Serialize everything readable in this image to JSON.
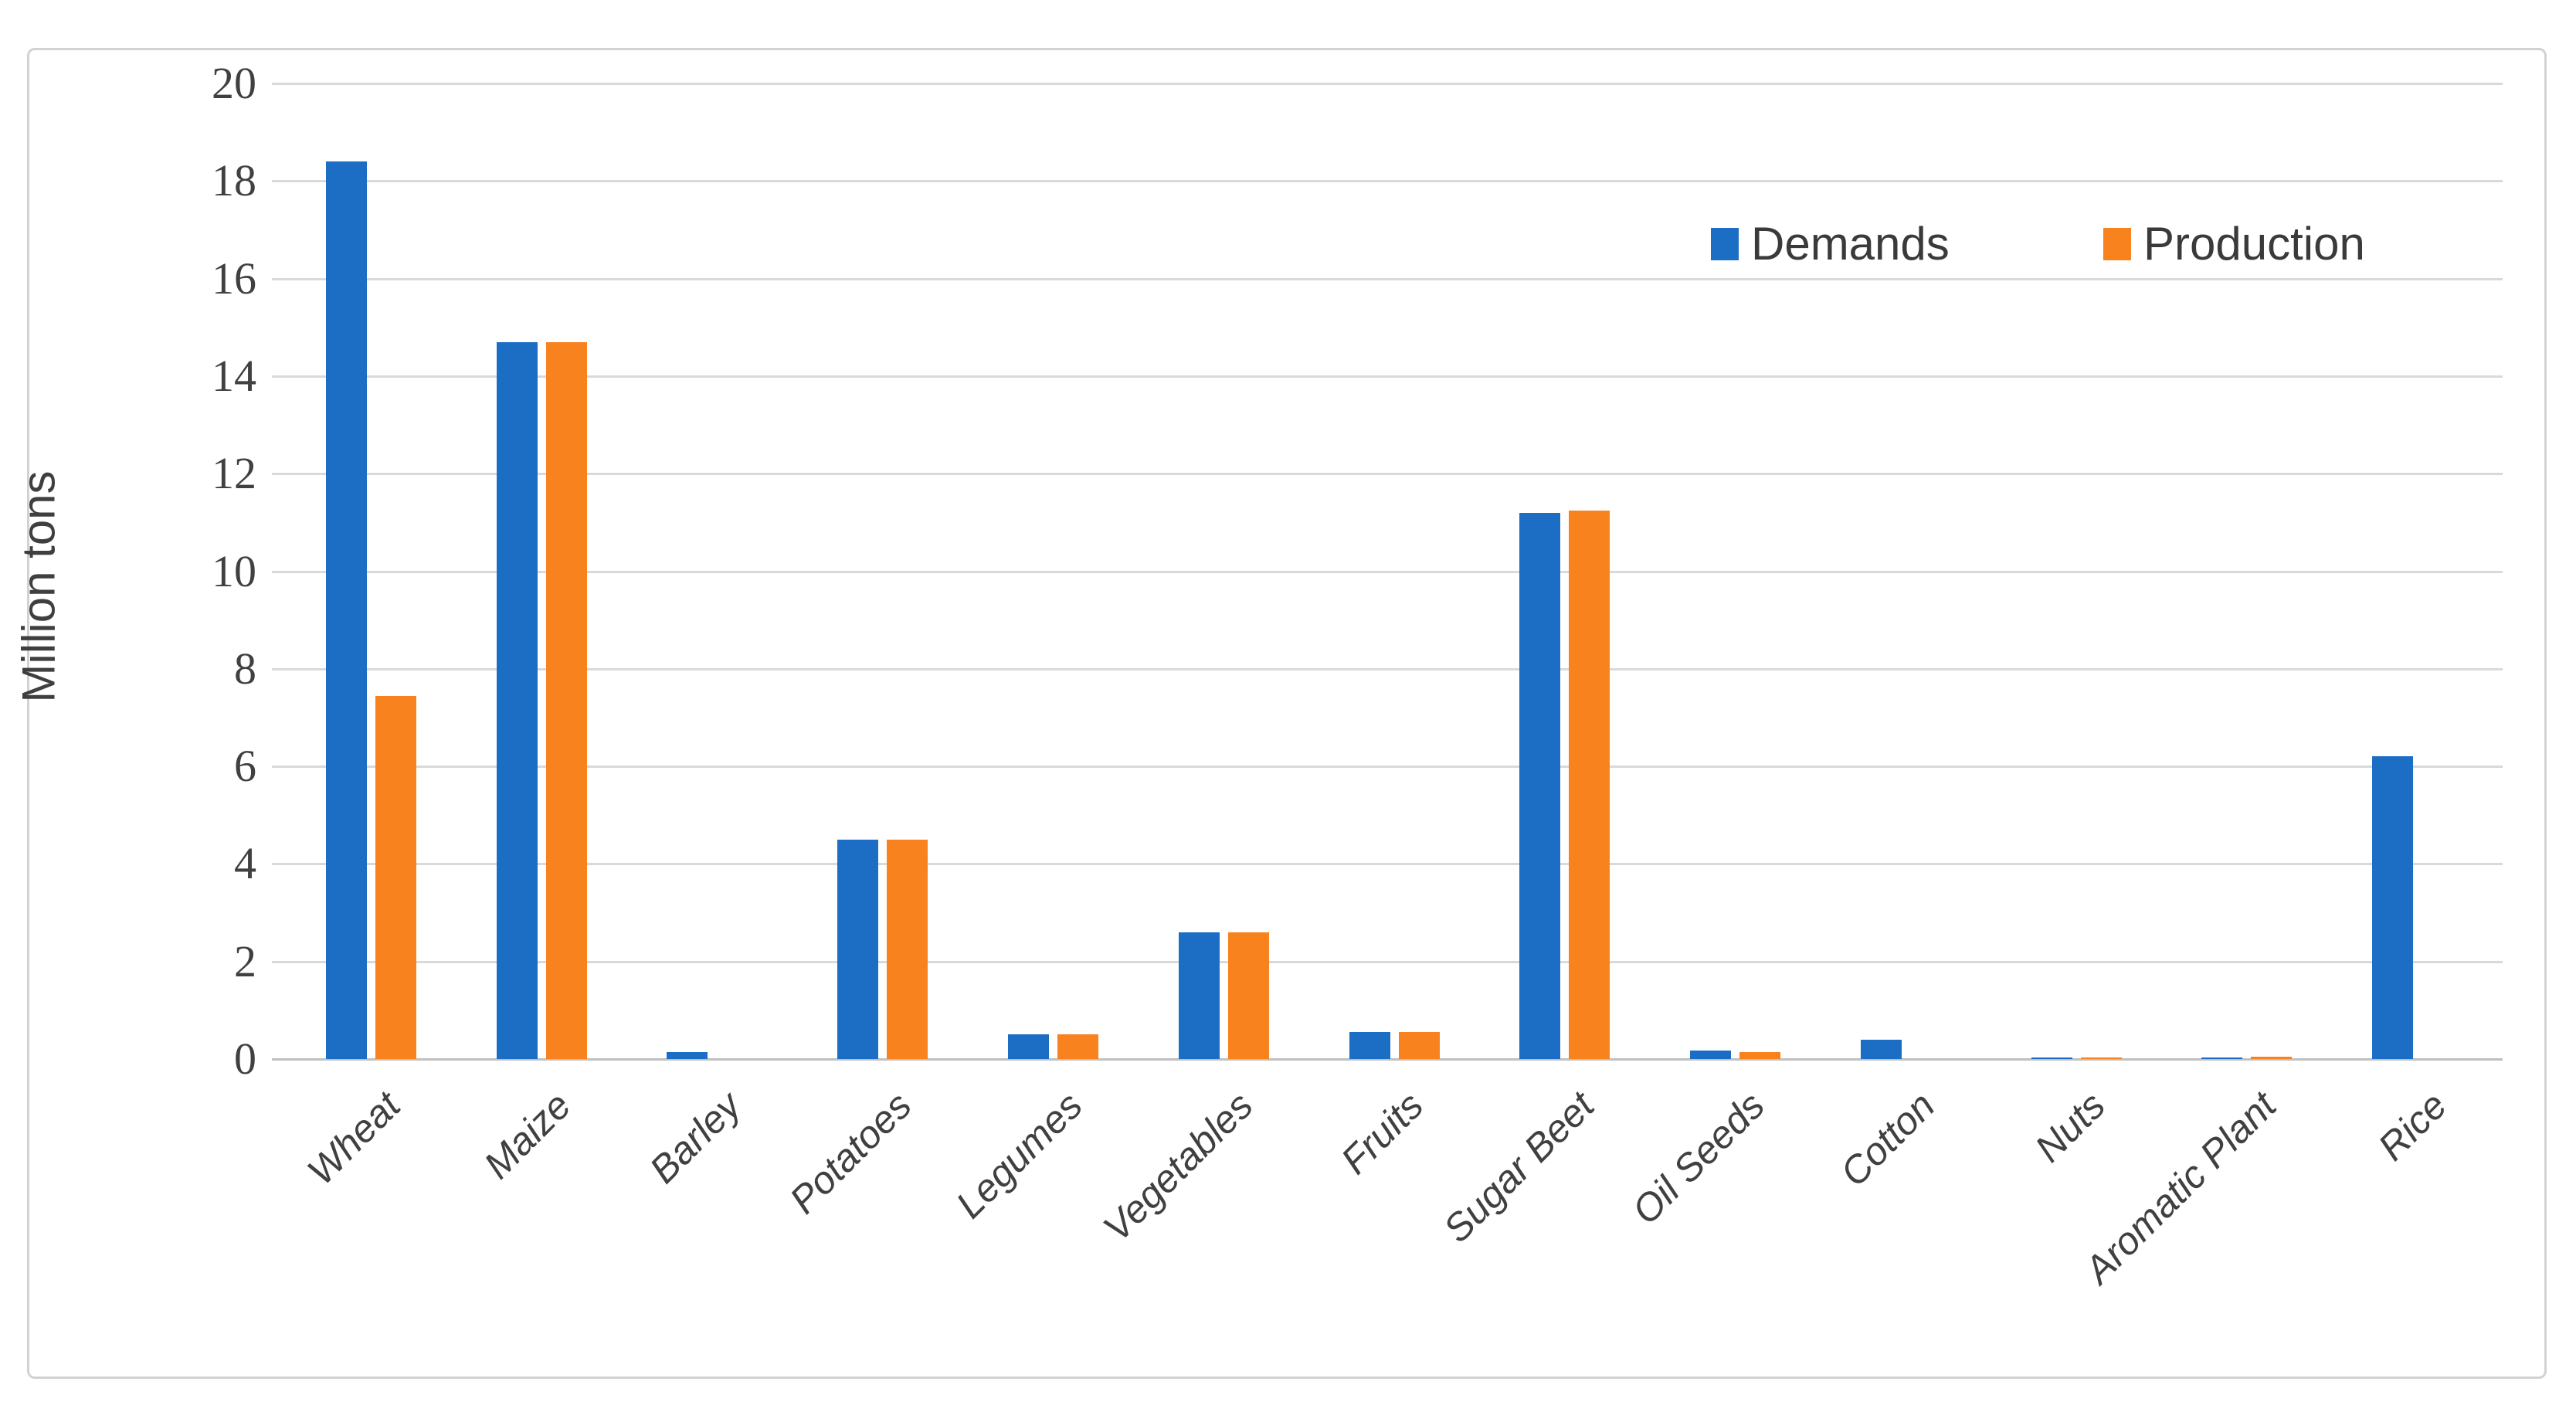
{
  "chart_data": {
    "type": "bar",
    "categories": [
      "Wheat",
      "Maize",
      "Barley",
      "Potatoes",
      "Legumes",
      "Vegetables",
      "Fruits",
      "Sugar Beet",
      "Oil Seeds",
      "Cotton",
      "Nuts",
      "Aromatic Plant",
      "Rice"
    ],
    "series": [
      {
        "name": "Demands",
        "color": "#1C6EC5",
        "values": [
          18.4,
          14.7,
          0.15,
          4.5,
          0.5,
          2.6,
          0.55,
          11.2,
          0.17,
          0.4,
          0.03,
          0.02,
          6.2
        ]
      },
      {
        "name": "Production",
        "color": "#F8821E",
        "values": [
          7.45,
          14.7,
          0,
          4.5,
          0.5,
          2.6,
          0.55,
          11.25,
          0.14,
          0,
          0.03,
          0.04,
          0
        ]
      }
    ],
    "title": "",
    "xlabel": "",
    "ylabel": "Million tons",
    "ylim": [
      0,
      20
    ],
    "ytick_step": 2,
    "ytick_labels": [
      "0",
      "2",
      "4",
      "6",
      "8",
      "10",
      "12",
      "14",
      "16",
      "18",
      "20"
    ],
    "grid": true,
    "legend_position": "top-right"
  },
  "colors": {
    "gridline": "#d9d9d9",
    "axis_line": "#c0c0c0",
    "tick_text": "#404040",
    "frame_border": "#d2d2d2",
    "background": "#ffffff"
  }
}
